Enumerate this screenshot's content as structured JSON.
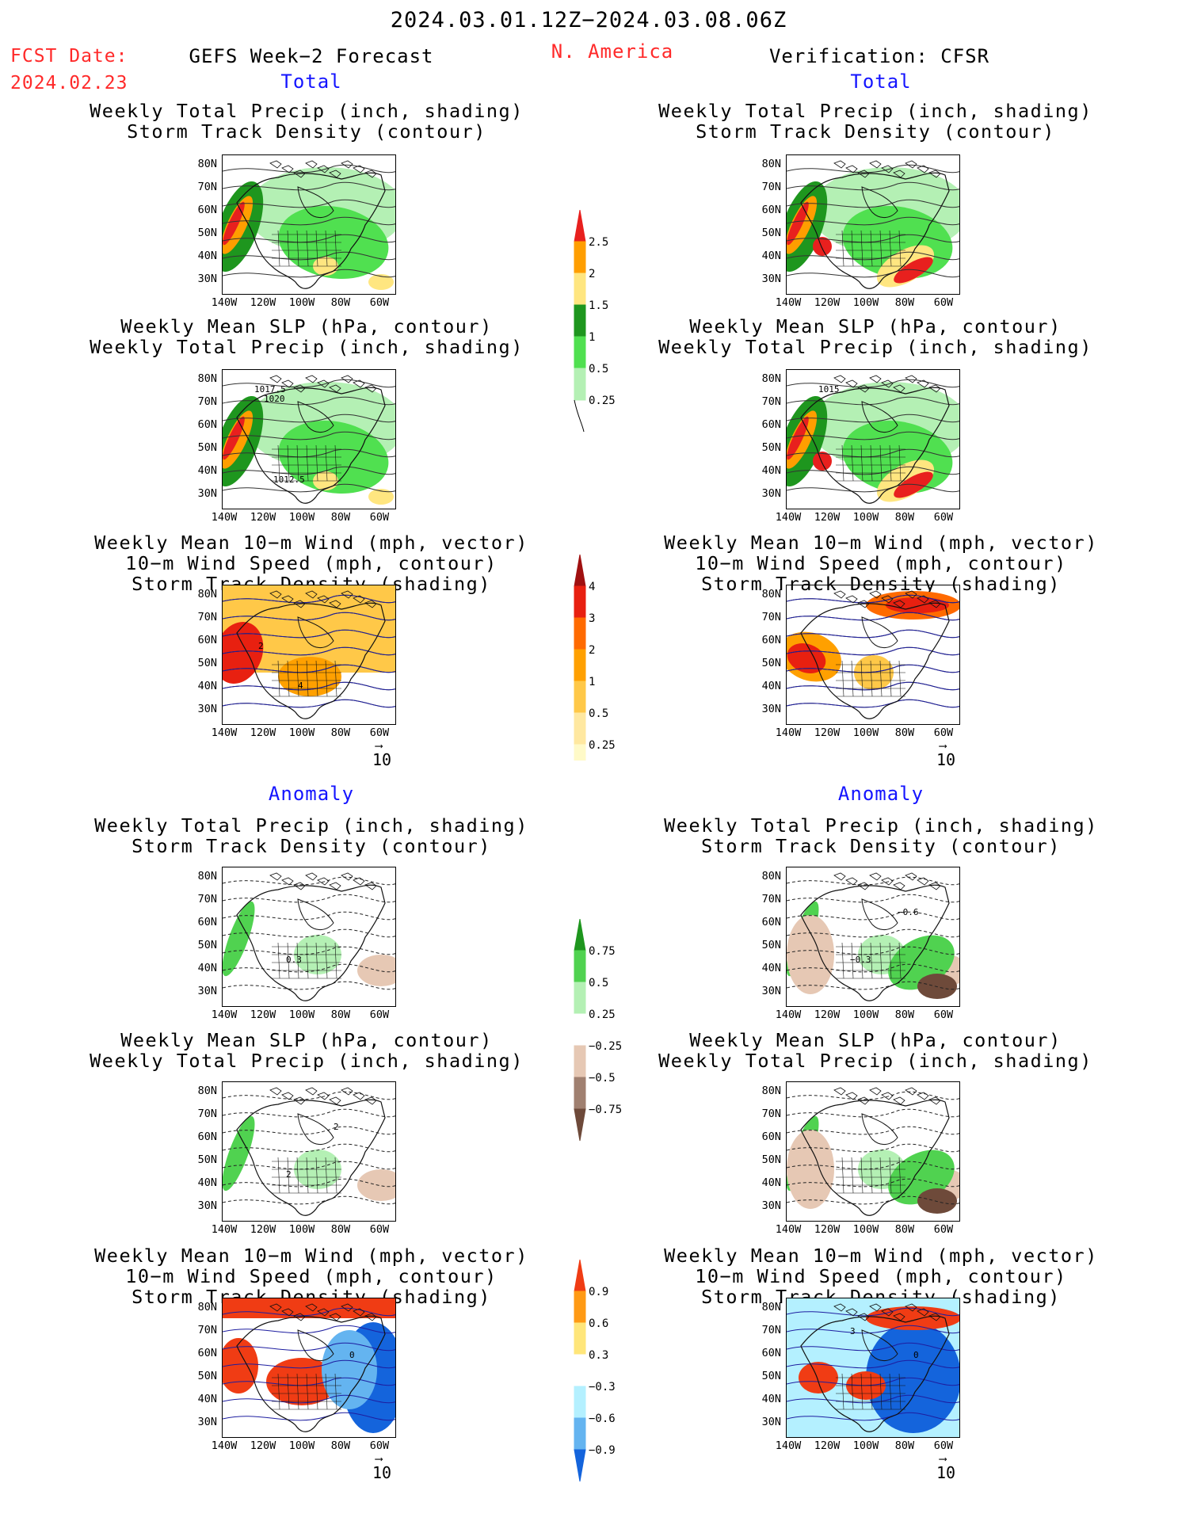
{
  "header": {
    "date_range": "2024.03.01.12Z−2024.03.08.06Z",
    "fcst_label": "FCST Date:",
    "fcst_date": "2024.02.23",
    "model_title": "GEFS Week−2 Forecast",
    "region": "N. America",
    "verification": "Verification: CFSR"
  },
  "sections": {
    "total_left": "Total",
    "total_right": "Total",
    "anomaly_left": "Anomaly",
    "anomaly_right": "Anomaly"
  },
  "panel_titles": {
    "precip_storm": [
      "Weekly Total Precip (inch, shading)",
      "Storm Track Density (contour)"
    ],
    "slp_precip": [
      "Weekly Mean SLP (hPa, contour)",
      "Weekly Total Precip (inch, shading)"
    ],
    "wind_storm": [
      "Weekly Mean 10−m Wind (mph, vector)",
      "10−m Wind Speed (mph, contour)",
      "Storm Track Density (shading)"
    ]
  },
  "axes": {
    "lat_labels": [
      "80N",
      "70N",
      "60N",
      "50N",
      "40N",
      "30N"
    ],
    "lon_labels": [
      "140W",
      "120W",
      "100W",
      "80W",
      "60W"
    ]
  },
  "contour_labels": {
    "total_slp_left": [
      "1017.5",
      "1020",
      "1012.5"
    ],
    "total_slp_right": [
      "1015"
    ],
    "total_wind_left": [
      "2",
      "4"
    ],
    "anom_storm_left": [
      "0.3"
    ],
    "anom_storm_right": [
      "−0.3",
      "−0.6"
    ],
    "anom_slp_left": [
      "2",
      "2"
    ],
    "anom_wind_left": [
      "0"
    ],
    "anom_wind_right": [
      "0",
      "3"
    ]
  },
  "vector_reference": "10",
  "colorbars": {
    "precip_total": {
      "labels": [
        "2.5",
        "2",
        "1.5",
        "1",
        "0.5",
        "0.25"
      ],
      "colors": [
        "#e8201e",
        "#ff9e00",
        "#ffe680",
        "#1e961e",
        "#50e050",
        "#b4f0b4"
      ]
    },
    "storm_total": {
      "labels": [
        "4",
        "3",
        "2",
        "1",
        "0.5",
        "0.25"
      ],
      "colors": [
        "#a01010",
        "#e82010",
        "#ff6a00",
        "#ffa000",
        "#ffc848",
        "#ffe8a0",
        "#fffac8"
      ]
    },
    "precip_anom": {
      "labels": [
        "0.75",
        "0.5",
        "0.25",
        "−0.25",
        "−0.5",
        "−0.75"
      ],
      "colors": [
        "#1e961e",
        "#50d250",
        "#b4f0b4",
        "#ffffff",
        "#e6c8b4",
        "#a08070",
        "#6e4a3a"
      ]
    },
    "storm_anom": {
      "labels": [
        "0.9",
        "0.6",
        "0.3",
        "−0.3",
        "−0.6",
        "−0.9"
      ],
      "colors": [
        "#f03c14",
        "#ff9a14",
        "#ffe67a",
        "#ffffff",
        "#b4f0ff",
        "#64b4f0",
        "#1464dc"
      ]
    }
  }
}
